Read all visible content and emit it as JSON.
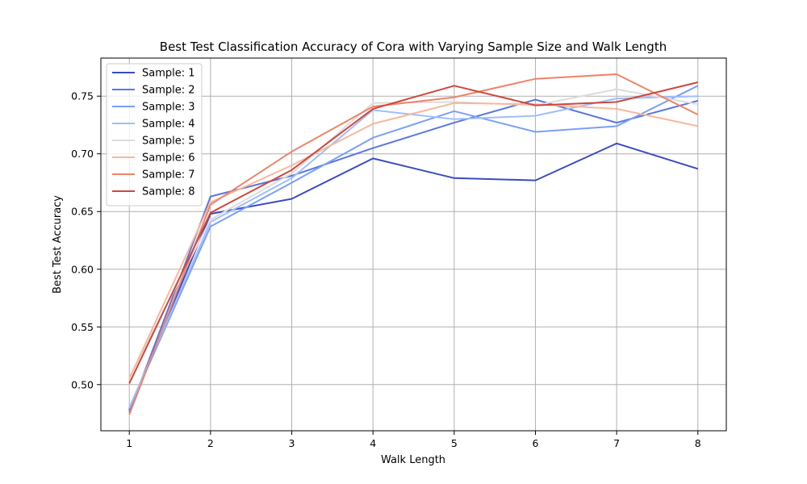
{
  "chart_data": {
    "type": "line",
    "title": "Best Test Classification Accuracy of Cora with Varying Sample Size and Walk Length",
    "xlabel": "Walk Length",
    "ylabel": "Best Test Accuracy",
    "x": [
      1,
      2,
      3,
      4,
      5,
      6,
      7,
      8
    ],
    "xlim": [
      0.65,
      8.35
    ],
    "ylim": [
      0.46,
      0.783
    ],
    "yticks": [
      0.5,
      0.55,
      0.6,
      0.65,
      0.7,
      0.75
    ],
    "ytick_labels": [
      "0.50",
      "0.55",
      "0.60",
      "0.65",
      "0.70",
      "0.75"
    ],
    "xtick_labels": [
      "1",
      "2",
      "3",
      "4",
      "5",
      "6",
      "7",
      "8"
    ],
    "grid": true,
    "legend_position": "top-left",
    "series": [
      {
        "name": "Sample: 1",
        "color": "#3b4cc0",
        "values": [
          0.478,
          0.648,
          0.661,
          0.696,
          0.679,
          0.677,
          0.709,
          0.687
        ]
      },
      {
        "name": "Sample: 2",
        "color": "#5977e3",
        "values": [
          0.476,
          0.663,
          0.681,
          0.705,
          0.727,
          0.747,
          0.727,
          0.746
        ]
      },
      {
        "name": "Sample: 3",
        "color": "#7b9ff9",
        "values": [
          0.479,
          0.637,
          0.675,
          0.714,
          0.737,
          0.719,
          0.724,
          0.759
        ]
      },
      {
        "name": "Sample: 4",
        "color": "#9ebeff",
        "values": [
          0.48,
          0.641,
          0.679,
          0.738,
          0.73,
          0.733,
          0.748,
          0.75
        ]
      },
      {
        "name": "Sample: 5",
        "color": "#dddcdc",
        "values": [
          0.506,
          0.643,
          0.683,
          0.744,
          0.745,
          0.742,
          0.756,
          0.743
        ]
      },
      {
        "name": "Sample: 6",
        "color": "#f7b89c",
        "values": [
          0.505,
          0.658,
          0.69,
          0.726,
          0.744,
          0.743,
          0.739,
          0.724
        ]
      },
      {
        "name": "Sample: 7",
        "color": "#ee8468",
        "values": [
          0.474,
          0.656,
          0.702,
          0.741,
          0.749,
          0.765,
          0.769,
          0.734
        ]
      },
      {
        "name": "Sample: 8",
        "color": "#d0473d",
        "values": [
          0.501,
          0.649,
          0.686,
          0.739,
          0.759,
          0.742,
          0.745,
          0.762
        ]
      }
    ]
  }
}
